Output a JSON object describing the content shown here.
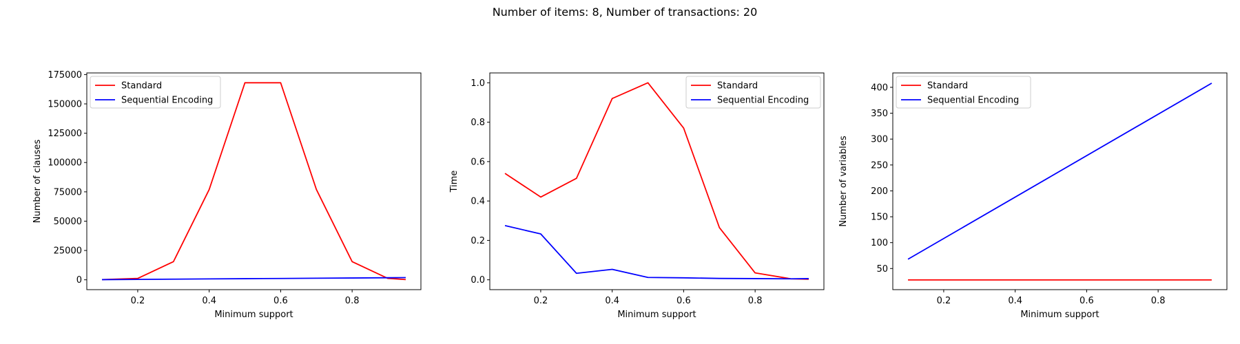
{
  "figure": {
    "suptitle": "Number of items: 8, Number of transactions: 20"
  },
  "colors": {
    "Standard": "#ff0000",
    "Sequential Encoding": "#0000ff"
  },
  "chart_data": [
    {
      "type": "line",
      "xlabel": "Minimum support",
      "ylabel": "Number of clauses",
      "xlim": [
        0.0575,
        0.9925
      ],
      "ylim": [
        -8400,
        176400
      ],
      "xticks": [
        0.2,
        0.4,
        0.6,
        0.8
      ],
      "xtick_labels": [
        "0.2",
        "0.4",
        "0.6",
        "0.8"
      ],
      "yticks": [
        0,
        25000,
        50000,
        75000,
        100000,
        125000,
        150000,
        175000
      ],
      "ytick_labels": [
        "0",
        "25000",
        "50000",
        "75000",
        "100000",
        "125000",
        "150000",
        "175000"
      ],
      "legend_loc": "upper-left",
      "series": [
        {
          "name": "Standard",
          "x": [
            0.1,
            0.2,
            0.3,
            0.4,
            0.5,
            0.6,
            0.7,
            0.8,
            0.9,
            0.95
          ],
          "y": [
            200,
            1200,
            15500,
            77000,
            168000,
            168000,
            77000,
            15500,
            1200,
            200
          ]
        },
        {
          "name": "Sequential Encoding",
          "x": [
            0.1,
            0.2,
            0.3,
            0.4,
            0.5,
            0.6,
            0.7,
            0.8,
            0.9,
            0.95
          ],
          "y": [
            150,
            350,
            550,
            750,
            950,
            1150,
            1350,
            1550,
            1750,
            1850
          ]
        }
      ]
    },
    {
      "type": "line",
      "xlabel": "Minimum support",
      "ylabel": "Time",
      "xlim": [
        0.0575,
        0.9925
      ],
      "ylim": [
        -0.05,
        1.05
      ],
      "xticks": [
        0.2,
        0.4,
        0.6,
        0.8
      ],
      "xtick_labels": [
        "0.2",
        "0.4",
        "0.6",
        "0.8"
      ],
      "yticks": [
        0.0,
        0.2,
        0.4,
        0.6,
        0.8,
        1.0
      ],
      "ytick_labels": [
        "0.0",
        "0.2",
        "0.4",
        "0.6",
        "0.8",
        "1.0"
      ],
      "legend_loc": "upper-right",
      "series": [
        {
          "name": "Standard",
          "x": [
            0.1,
            0.2,
            0.3,
            0.4,
            0.5,
            0.6,
            0.7,
            0.8,
            0.9,
            0.95
          ],
          "y": [
            0.54,
            0.42,
            0.515,
            0.92,
            1.0,
            0.77,
            0.265,
            0.035,
            0.005,
            0.003
          ]
        },
        {
          "name": "Sequential Encoding",
          "x": [
            0.1,
            0.2,
            0.3,
            0.4,
            0.5,
            0.6,
            0.7,
            0.8,
            0.9,
            0.95
          ],
          "y": [
            0.275,
            0.233,
            0.033,
            0.053,
            0.012,
            0.01,
            0.007,
            0.006,
            0.005,
            0.006
          ]
        }
      ]
    },
    {
      "type": "line",
      "xlabel": "Minimum support",
      "ylabel": "Number of variables",
      "xlim": [
        0.0575,
        0.9925
      ],
      "ylim": [
        9.2,
        427.8
      ],
      "xticks": [
        0.2,
        0.4,
        0.6,
        0.8
      ],
      "xtick_labels": [
        "0.2",
        "0.4",
        "0.6",
        "0.8"
      ],
      "yticks": [
        50,
        100,
        150,
        200,
        250,
        300,
        350,
        400
      ],
      "ytick_labels": [
        "50",
        "100",
        "150",
        "200",
        "250",
        "300",
        "350",
        "400"
      ],
      "legend_loc": "upper-left",
      "series": [
        {
          "name": "Standard",
          "x": [
            0.1,
            0.95
          ],
          "y": [
            28,
            28
          ]
        },
        {
          "name": "Sequential Encoding",
          "x": [
            0.1,
            0.95
          ],
          "y": [
            68,
            408
          ]
        }
      ]
    }
  ]
}
